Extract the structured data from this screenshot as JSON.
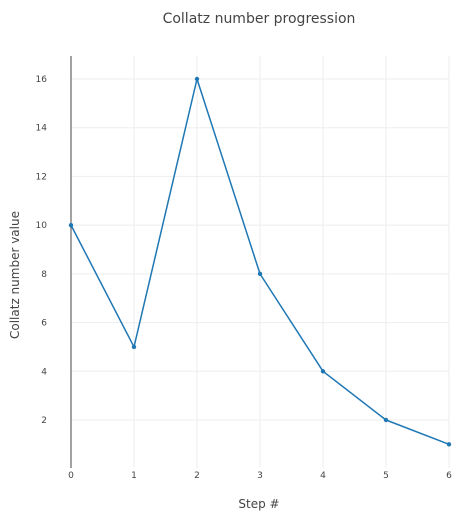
{
  "colors": {
    "line": "#1f77b4",
    "marker": "#1f77b4",
    "grid": "#eeeeee",
    "axis": "#444444",
    "text": "#444444",
    "background": "#ffffff"
  },
  "chart_data": {
    "type": "line",
    "title": "Collatz number progression",
    "xlabel": "Step #",
    "ylabel": "Collatz number value",
    "x": [
      0,
      1,
      2,
      3,
      4,
      5,
      6
    ],
    "y": [
      10,
      5,
      16,
      8,
      4,
      2,
      1
    ],
    "xlim": [
      0,
      6
    ],
    "ylim": [
      0,
      17
    ],
    "xticks": [
      0,
      1,
      2,
      3,
      4,
      5,
      6
    ],
    "yticks": [
      2,
      4,
      6,
      8,
      10,
      12,
      14,
      16
    ],
    "grid": true,
    "markers": true
  }
}
